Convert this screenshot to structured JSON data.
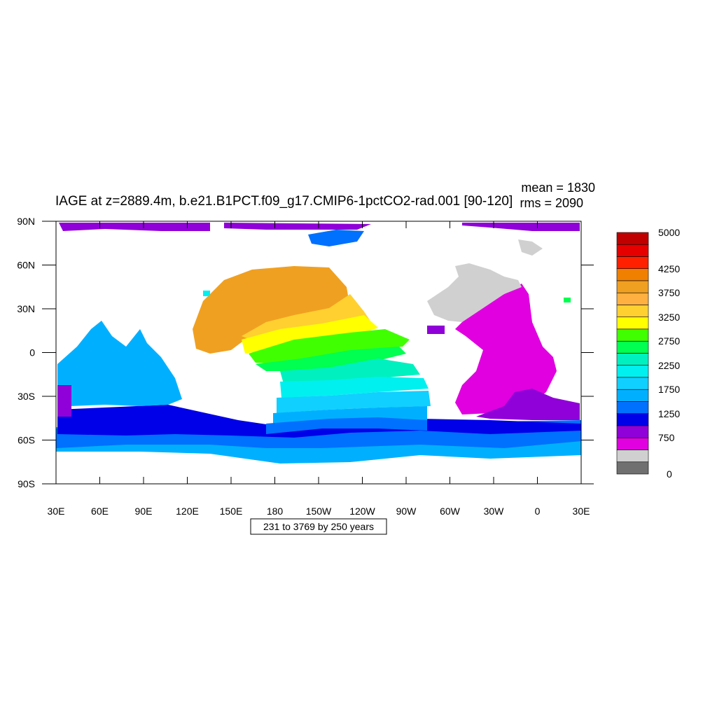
{
  "title": "IAGE at z=2889.4m, b.e21.B1PCT.f09_g17.CMIP6-1pctCO2-rad.001 [90-120]",
  "stats": {
    "mean": "mean = 1830",
    "rms": "rms = 2090"
  },
  "contour_info": "231 to 3769 by 250 years",
  "axes": {
    "x_ticks": [
      "30E",
      "60E",
      "90E",
      "120E",
      "150E",
      "180",
      "150W",
      "120W",
      "90W",
      "60W",
      "30W",
      "0",
      "30E"
    ],
    "y_ticks": [
      "90N",
      "60N",
      "30N",
      "0",
      "30S",
      "60S",
      "90S"
    ]
  },
  "colorbar": {
    "labels": [
      "5000",
      "4250",
      "3750",
      "3250",
      "2750",
      "2250",
      "1750",
      "1250",
      "750",
      "0"
    ],
    "colors": [
      "#c00000",
      "#e60000",
      "#ff2000",
      "#f08000",
      "#f0a020",
      "#ffb040",
      "#ffd030",
      "#ffff00",
      "#40ff00",
      "#00ff50",
      "#00f0c0",
      "#00f0f0",
      "#10d0ff",
      "#00b0ff",
      "#0070ff",
      "#0000e8",
      "#9000d8",
      "#e000e0",
      "#d0d0d0",
      "#707070"
    ]
  },
  "map": {
    "type": "filled-contour-map",
    "projection": "cylindrical equidistant",
    "lon_range": [
      "30E",
      "30E"
    ],
    "lat_range": [
      "90S",
      "90N"
    ],
    "land_color": "#ffffff",
    "missing_color": "#d0d0d0"
  }
}
